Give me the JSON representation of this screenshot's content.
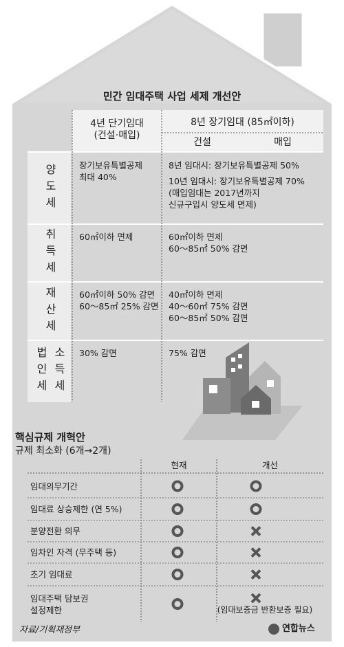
{
  "title": "민간 임대주택 사업 세제 개선안",
  "tax_table": {
    "header": {
      "col1": "4년 단기임대\n(건설·매입)",
      "col2": "8년 장기임대 (85㎡이하)",
      "col2_sub": [
        "건설",
        "매입"
      ]
    },
    "rows": [
      {
        "label": [
          "양도세"
        ],
        "col1": [
          "장기보유특별공제\n최대 40%"
        ],
        "col2": [
          "8년 임대시: 장기보유특별공제 50%",
          "10년 임대시: 장기보유특별공제 70%\n(매입임대는 2017년까지\n신규구입시 양도세 면제)"
        ]
      },
      {
        "label": [
          "취득세"
        ],
        "col1": [
          "60㎡이하 면제"
        ],
        "col2": [
          "60㎡이하 면제\n60～85㎡ 50% 감면"
        ]
      },
      {
        "label": [
          "재산세"
        ],
        "col1": [
          "60㎡이하 50% 감면\n60～85㎡ 25% 감면"
        ],
        "col2": [
          "40㎡이하 면제\n40～60㎡ 75% 감면\n60～85㎡ 50% 감면"
        ]
      },
      {
        "label": [
          "소득세",
          "법인세"
        ],
        "col1": [
          "30% 감면"
        ],
        "col2": [
          "75% 감면"
        ]
      }
    ]
  },
  "reform": {
    "title": "핵심규제 개혁안",
    "subtitle": "규제 최소화 (6개→2개)",
    "header": [
      "현재",
      "개선"
    ],
    "rows": [
      {
        "label": "임대의무기간",
        "current": "o",
        "improved": "o"
      },
      {
        "label": "임대료 상승제한 (연 5%)",
        "current": "o",
        "improved": "o"
      },
      {
        "label": "분양전환 의무",
        "current": "o",
        "improved": "x"
      },
      {
        "label": "임차인 자격 (무주택 등)",
        "current": "o",
        "improved": "x"
      },
      {
        "label": "초기 임대료",
        "current": "o",
        "improved": "x"
      },
      {
        "label": "임대주택 담보권\n설정제한",
        "current": "o",
        "improved": "x",
        "note": "(임대보증금 반환보증 필요)"
      }
    ]
  },
  "source": "자료/기획재정부",
  "logo": "연합뉴스"
}
